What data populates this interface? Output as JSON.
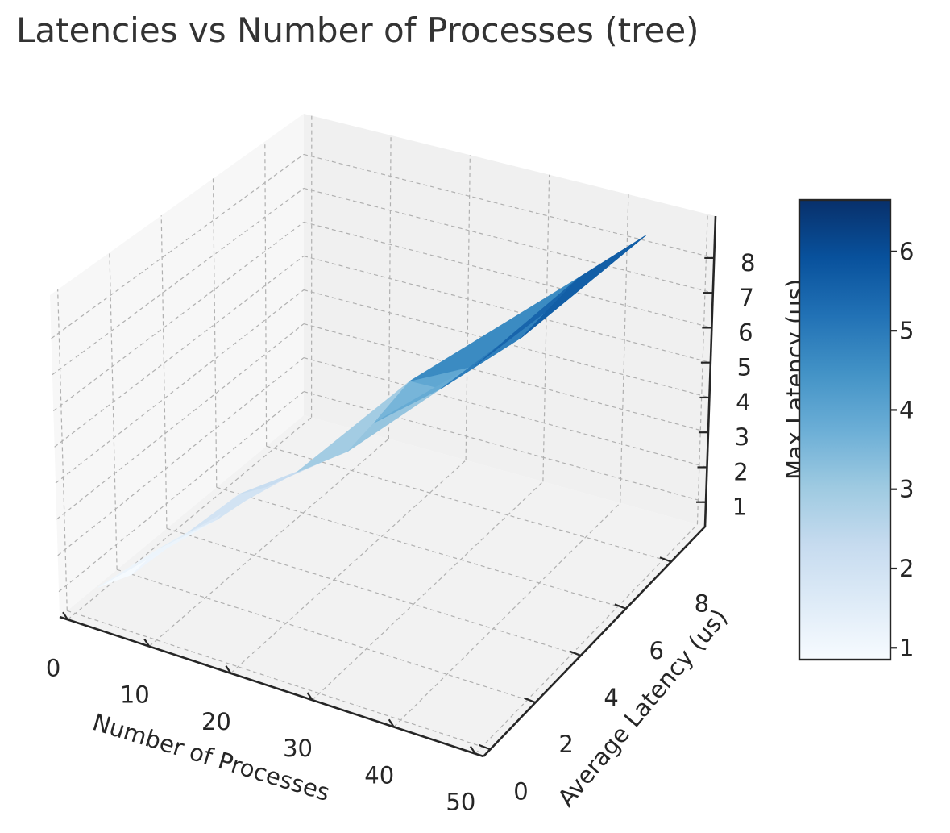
{
  "chart_data": {
    "type": "surface3d",
    "title": "Latencies vs Number of Processes (tree)",
    "x_axis": {
      "label": "Number of Processes",
      "ticks": [
        0,
        10,
        20,
        30,
        40,
        50
      ],
      "range": [
        -1,
        51
      ]
    },
    "y_axis": {
      "label": "Average Latency (us)",
      "ticks": [
        0,
        2,
        4,
        6,
        8
      ],
      "range": [
        -0.3,
        9.5
      ]
    },
    "z_axis": {
      "label": "Max Latency (us)",
      "ticks": [
        1,
        2,
        3,
        4,
        5,
        6,
        7,
        8
      ],
      "range": [
        0.3,
        9.2
      ]
    },
    "colorbar": {
      "ticks": [
        1,
        2,
        3,
        4,
        5,
        6
      ],
      "range": [
        0.85,
        6.65
      ],
      "colormap": "Blues"
    },
    "grid": true,
    "points": [
      {
        "x": 2,
        "y": 0.3,
        "z": 1.0
      },
      {
        "x": 4,
        "y": 1.0,
        "z": 1.1
      },
      {
        "x": 6,
        "y": 1.5,
        "z": 1.7
      },
      {
        "x": 8,
        "y": 2.0,
        "z": 2.0
      },
      {
        "x": 10,
        "y": 2.5,
        "z": 2.2
      },
      {
        "x": 12,
        "y": 2.8,
        "z": 2.9
      },
      {
        "x": 14,
        "y": 3.2,
        "z": 3.0
      },
      {
        "x": 16,
        "y": 3.8,
        "z": 3.2
      },
      {
        "x": 18,
        "y": 4.2,
        "z": 3.4
      },
      {
        "x": 20,
        "y": 4.6,
        "z": 3.6
      },
      {
        "x": 22,
        "y": 5.0,
        "z": 4.3
      },
      {
        "x": 25,
        "y": 5.5,
        "z": 5.4
      },
      {
        "x": 28,
        "y": 5.8,
        "z": 5.2
      },
      {
        "x": 31,
        "y": 6.2,
        "z": 5.8
      },
      {
        "x": 35,
        "y": 6.8,
        "z": 6.5
      },
      {
        "x": 40,
        "y": 7.5,
        "z": 8.1
      },
      {
        "x": 45,
        "y": 8.6,
        "z": 8.9
      }
    ],
    "triangles": [
      [
        0,
        1,
        2
      ],
      [
        1,
        2,
        3
      ],
      [
        0,
        2,
        4
      ],
      [
        2,
        3,
        4
      ],
      [
        3,
        4,
        5
      ],
      [
        4,
        5,
        6
      ],
      [
        3,
        5,
        7
      ],
      [
        5,
        6,
        8
      ],
      [
        6,
        7,
        8
      ],
      [
        7,
        8,
        9
      ],
      [
        8,
        9,
        10
      ],
      [
        7,
        9,
        11
      ],
      [
        9,
        10,
        12
      ],
      [
        10,
        11,
        12
      ],
      [
        11,
        12,
        13
      ],
      [
        12,
        13,
        14
      ],
      [
        11,
        13,
        15
      ],
      [
        13,
        14,
        15
      ],
      [
        14,
        15,
        16
      ],
      [
        13,
        15,
        16
      ],
      [
        10,
        12,
        14
      ],
      [
        12,
        14,
        16
      ]
    ]
  }
}
